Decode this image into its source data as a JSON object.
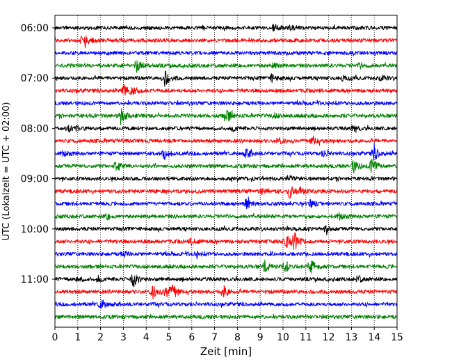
{
  "chart_data": {
    "type": "line",
    "title": "",
    "xlabel": "Zeit  [min]",
    "ylabel": "UTC (Lokalzeit = UTC + 02:00)",
    "xlim": [
      0,
      15
    ],
    "x_ticks": [
      0,
      1,
      2,
      3,
      4,
      5,
      6,
      7,
      8,
      9,
      10,
      11,
      12,
      13,
      14,
      15
    ],
    "grid": "vertical dotted at each minute",
    "legend": "none",
    "y_tick_labels": [
      "06:00",
      "07:00",
      "08:00",
      "09:00",
      "10:00",
      "11:00"
    ],
    "y_tick_row_index": [
      0,
      4,
      8,
      12,
      16,
      20
    ],
    "color_cycle": [
      "#000000",
      "#ff0000",
      "#0000ff",
      "#008000"
    ],
    "start_time": "05:59",
    "row_interval_minutes": 15,
    "rows": [
      {
        "start": "05:59",
        "color": "#000000",
        "events": [
          [
            9.6,
            0.7
          ],
          [
            10.3,
            0.4
          ]
        ]
      },
      {
        "start": "06:14",
        "color": "#ff0000",
        "events": [
          [
            1.2,
            1.2
          ],
          [
            1.4,
            0.8
          ]
        ]
      },
      {
        "start": "06:29",
        "color": "#0000ff",
        "events": []
      },
      {
        "start": "06:44",
        "color": "#008000",
        "events": [
          [
            3.6,
            1.6
          ],
          [
            9.6,
            0.5
          ],
          [
            13.4,
            0.5
          ]
        ]
      },
      {
        "start": "06:59",
        "color": "#000000",
        "events": [
          [
            4.8,
            2.0
          ],
          [
            9.5,
            0.8
          ],
          [
            12.6,
            0.6
          ],
          [
            14.3,
            0.6
          ]
        ]
      },
      {
        "start": "07:14",
        "color": "#ff0000",
        "events": [
          [
            3.0,
            1.6
          ],
          [
            3.4,
            0.8
          ]
        ]
      },
      {
        "start": "07:29",
        "color": "#0000ff",
        "events": []
      },
      {
        "start": "07:44",
        "color": "#008000",
        "events": [
          [
            2.9,
            1.8
          ],
          [
            7.5,
            2.0
          ],
          [
            9.6,
            0.5
          ]
        ]
      },
      {
        "start": "07:59",
        "color": "#000000",
        "events": [
          [
            0.6,
            0.7
          ],
          [
            1.0,
            0.6
          ],
          [
            7.8,
            0.6
          ],
          [
            13.1,
            0.6
          ]
        ]
      },
      {
        "start": "08:14",
        "color": "#ff0000",
        "events": [
          [
            9.8,
            0.7
          ],
          [
            11.3,
            1.2
          ]
        ]
      },
      {
        "start": "08:29",
        "color": "#0000ff",
        "events": [
          [
            0.4,
            0.6
          ],
          [
            4.8,
            1.3
          ],
          [
            8.4,
            1.1
          ],
          [
            11.8,
            0.6
          ],
          [
            14.0,
            1.6
          ]
        ]
      },
      {
        "start": "08:44",
        "color": "#008000",
        "events": [
          [
            2.7,
            1.5
          ],
          [
            13.1,
            1.4
          ],
          [
            13.9,
            2.0
          ]
        ]
      },
      {
        "start": "08:59",
        "color": "#000000",
        "events": [
          [
            10.2,
            0.7
          ]
        ]
      },
      {
        "start": "09:14",
        "color": "#ff0000",
        "events": [
          [
            9.1,
            0.8
          ],
          [
            10.3,
            1.6
          ],
          [
            10.8,
            0.8
          ]
        ]
      },
      {
        "start": "09:29",
        "color": "#0000ff",
        "events": [
          [
            8.4,
            1.2
          ],
          [
            11.2,
            0.9
          ]
        ]
      },
      {
        "start": "09:44",
        "color": "#008000",
        "events": [
          [
            2.3,
            0.6
          ],
          [
            12.5,
            0.8
          ]
        ]
      },
      {
        "start": "09:59",
        "color": "#000000",
        "events": [
          [
            11.9,
            0.7
          ]
        ]
      },
      {
        "start": "10:14",
        "color": "#ff0000",
        "events": [
          [
            6.0,
            0.8
          ],
          [
            10.1,
            1.8
          ],
          [
            10.5,
            2.0
          ]
        ]
      },
      {
        "start": "10:29",
        "color": "#0000ff",
        "events": [
          [
            3.0,
            0.5
          ],
          [
            6.2,
            0.5
          ]
        ]
      },
      {
        "start": "10:44",
        "color": "#008000",
        "events": [
          [
            9.2,
            1.4
          ],
          [
            10.1,
            1.6
          ],
          [
            11.2,
            1.8
          ]
        ]
      },
      {
        "start": "10:59",
        "color": "#000000",
        "events": [
          [
            1.0,
            0.6
          ],
          [
            1.9,
            0.7
          ],
          [
            3.4,
            2.2
          ],
          [
            13.3,
            0.7
          ]
        ]
      },
      {
        "start": "11:14",
        "color": "#ff0000",
        "events": [
          [
            4.3,
            1.6
          ],
          [
            4.9,
            1.6
          ],
          [
            5.2,
            1.3
          ],
          [
            7.4,
            1.5
          ]
        ]
      },
      {
        "start": "11:29",
        "color": "#0000ff",
        "events": [
          [
            2.0,
            1.3
          ]
        ]
      },
      {
        "start": "11:44",
        "color": "#008000",
        "events": []
      }
    ]
  }
}
